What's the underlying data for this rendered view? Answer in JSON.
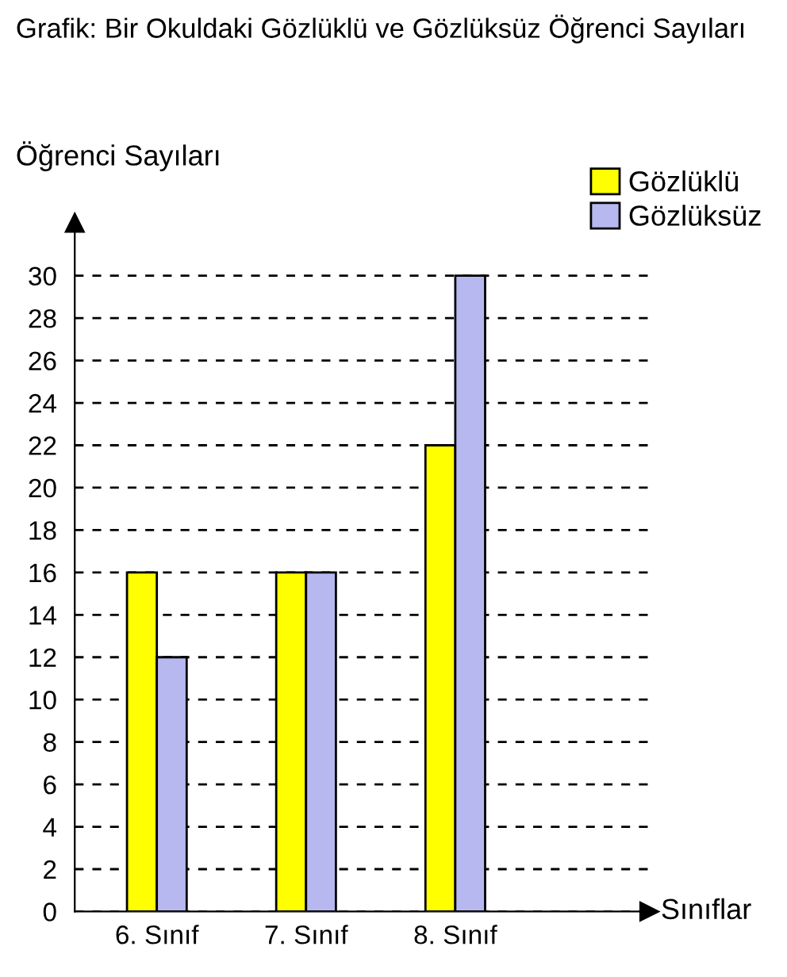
{
  "chart_data": {
    "type": "bar",
    "title": "Grafik: Bir Okuldaki Gözlüklü ve Gözlüksüz Öğrenci Sayıları",
    "ylabel": "Öğrenci Sayıları",
    "xlabel": "Sınıflar",
    "categories": [
      "6. Sınıf",
      "7. Sınıf",
      "8. Sınıf"
    ],
    "series": [
      {
        "name": "Gözlüklü",
        "color": "#ffff00",
        "values": [
          16,
          16,
          22
        ]
      },
      {
        "name": "Gözlüksüz",
        "color": "#b8b8f0",
        "values": [
          12,
          16,
          30
        ]
      }
    ],
    "ylim": [
      0,
      32.5
    ],
    "yticks": [
      0,
      2,
      4,
      6,
      8,
      10,
      12,
      14,
      16,
      18,
      20,
      22,
      24,
      26,
      28,
      30
    ],
    "grid": "y",
    "legend": "top right"
  }
}
